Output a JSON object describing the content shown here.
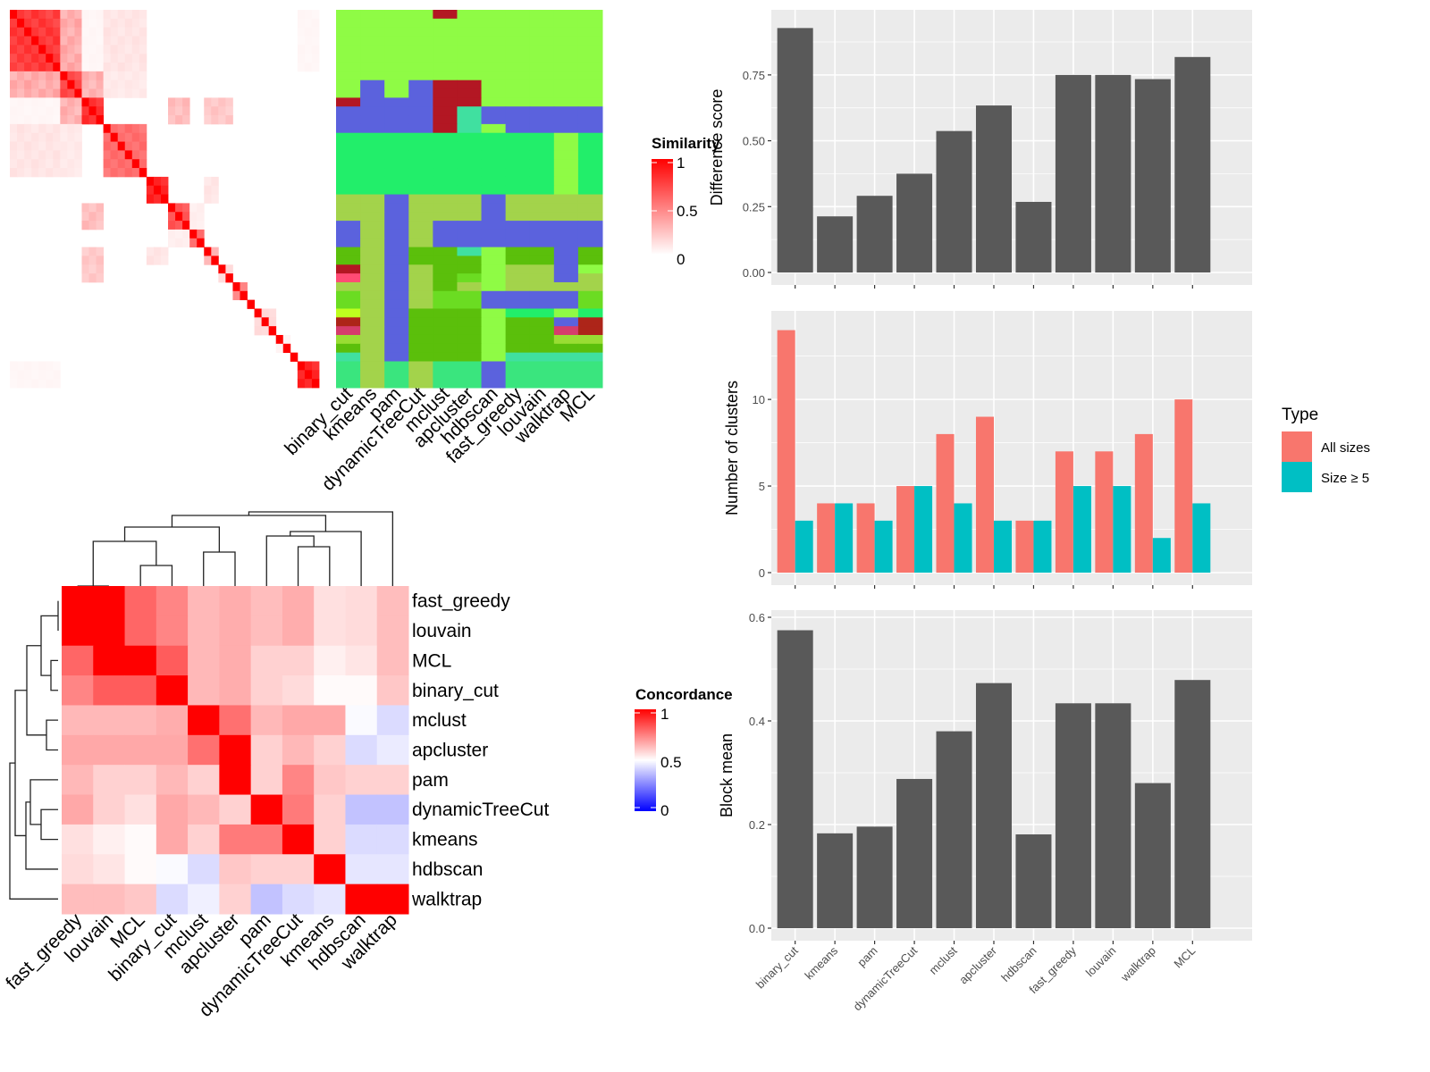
{
  "chart_data": [
    {
      "id": "similarity_heatmap",
      "type": "heatmap",
      "title": "",
      "n": 43,
      "legend": {
        "title": "Similarity",
        "ticks": [
          "1",
          "0.5",
          "0"
        ],
        "low_color": "#ffffff",
        "high_color": "#ff0000",
        "range": [
          0,
          1
        ]
      },
      "blocks": [
        {
          "from": 0,
          "to": 6,
          "within": 0.82
        },
        {
          "from": 7,
          "to": 9,
          "within": 0.75
        },
        {
          "from": 10,
          "to": 12,
          "within": 0.85
        },
        {
          "from": 13,
          "to": 18,
          "within": 0.6
        },
        {
          "from": 19,
          "to": 21,
          "within": 0.9
        },
        {
          "from": 22,
          "to": 24,
          "within": 0.7
        },
        {
          "from": 25,
          "to": 26,
          "within": 0.6
        },
        {
          "from": 27,
          "to": 28,
          "within": 0.3
        },
        {
          "from": 29,
          "to": 30,
          "within": 0.15
        },
        {
          "from": 31,
          "to": 32,
          "within": 0.5
        },
        {
          "from": 33,
          "to": 33,
          "within": 1.0
        },
        {
          "from": 34,
          "to": 36,
          "within": 0.15
        },
        {
          "from": 37,
          "to": 38,
          "within": 0.05
        },
        {
          "from": 39,
          "to": 39,
          "within": 1.0
        },
        {
          "from": 40,
          "to": 42,
          "within": 0.9
        }
      ],
      "cross": [
        {
          "a": [
            0,
            6
          ],
          "b": [
            7,
            9
          ],
          "v": 0.38
        },
        {
          "a": [
            0,
            6
          ],
          "b": [
            10,
            12
          ],
          "v": 0.04
        },
        {
          "a": [
            0,
            6
          ],
          "b": [
            13,
            18
          ],
          "v": 0.12
        },
        {
          "a": [
            7,
            9
          ],
          "b": [
            10,
            12
          ],
          "v": 0.35
        },
        {
          "a": [
            7,
            9
          ],
          "b": [
            13,
            18
          ],
          "v": 0.1
        },
        {
          "a": [
            10,
            12
          ],
          "b": [
            27,
            30
          ],
          "v": 0.25
        },
        {
          "a": [
            13,
            18
          ],
          "b": [
            19,
            21
          ],
          "v": 0.0
        },
        {
          "a": [
            22,
            24
          ],
          "b": [
            25,
            26
          ],
          "v": 0.08
        },
        {
          "a": [
            19,
            21
          ],
          "b": [
            27,
            28
          ],
          "v": 0.12
        },
        {
          "a": [
            10,
            12
          ],
          "b": [
            22,
            24
          ],
          "v": 0.3
        },
        {
          "a": [
            0,
            6
          ],
          "b": [
            40,
            42
          ],
          "v": 0.04
        }
      ]
    },
    {
      "id": "cluster_membership_heatmap",
      "type": "heatmap",
      "columns": [
        "binary_cut",
        "kmeans",
        "pam",
        "dynamicTreeCut",
        "mclust",
        "apcluster",
        "hdbscan",
        "fast_greedy",
        "louvain",
        "walktrap",
        "MCL"
      ],
      "palette": {
        "L": "#8ffb45",
        "R": "#b31723",
        "B": "#5b62dd",
        "T": "#40e0a0",
        "S": "#22ee6a",
        "O": "#a3d34b",
        "D": "#5bbf0b",
        "M": "#6bdc22",
        "P": "#ff4b74",
        "Y": "#beff1f",
        "K": "#ad2519",
        "C": "#d63c6c",
        "G": "#99dd33",
        "A": "#3ae57e"
      },
      "rows": [
        "LLLLRLLLLLL",
        "LLLLLLLLLLL",
        "LLLLLLLLLLL",
        "LLLLLLLLLLL",
        "LLLLLLLLLLL",
        "LLLLLLLLLLL",
        "LLLLLLLLLLL",
        "LLLLLLLLLLL",
        "LBLBRRLLLLL",
        "LBLBRRLLLLL",
        "RBBBRRLLLLL",
        "BBBBRTBBBBB",
        "BBBBRTBBBBB",
        "BBBBRTLBBBB",
        "SSSSSSSSSLS",
        "SSSSSSSSSLS",
        "SSSSSSSSSLS",
        "SSSSSSSSSLS",
        "SSSSSSSSSLS",
        "SSSSSSSSSLS",
        "SSSSSSSSSLS",
        "OOBOOOBOOOO",
        "OOBOOOBOOOO",
        "OOBOOOBOOOO",
        "BOBOBBBBBBB",
        "BOBOBBBBBBB",
        "BOBOBBBBBBB",
        "DOBDDTLDDBD",
        "DOBDDDLDDBD",
        "ROBODDLOOBL",
        "POBODMLOOBO",
        "OOBODOLOOOO",
        "MOBOMMBBBBM",
        "MOBOMMBBBBM",
        "YOBDDDLSSLS",
        "KOBDDDLDDBK",
        "COBDDDLDDCK",
        "GOBDDDLDDGG",
        "DOBDDDLDDDD",
        "TOBDDDLTTTT",
        "AOAOAABAAAA",
        "AOAOAABAAAA",
        "AOAOAABAAAA"
      ]
    },
    {
      "id": "concordance_heatmap",
      "type": "heatmap",
      "labels": [
        "fast_greedy",
        "louvain",
        "MCL",
        "binary_cut",
        "mclust",
        "apcluster",
        "pam",
        "dynamicTreeCut",
        "kmeans",
        "hdbscan",
        "walktrap"
      ],
      "legend": {
        "title": "Concordance",
        "ticks": [
          "1",
          "0.5",
          "0"
        ],
        "low_color": "#0000ff",
        "mid_color": "#ffffff",
        "high_color": "#ff0000",
        "range": [
          0,
          1
        ]
      },
      "matrix": [
        [
          1.0,
          1.0,
          0.8,
          0.74,
          0.64,
          0.66,
          0.63,
          0.66,
          0.56,
          0.57,
          0.63
        ],
        [
          1.0,
          1.0,
          0.8,
          0.74,
          0.64,
          0.66,
          0.63,
          0.66,
          0.56,
          0.57,
          0.63
        ],
        [
          0.8,
          1.0,
          1.0,
          0.82,
          0.64,
          0.66,
          0.59,
          0.59,
          0.53,
          0.55,
          0.63
        ],
        [
          0.74,
          0.82,
          0.82,
          1.0,
          0.64,
          0.66,
          0.59,
          0.57,
          0.51,
          0.51,
          0.61
        ],
        [
          0.64,
          0.64,
          0.64,
          0.66,
          1.0,
          0.78,
          0.64,
          0.67,
          0.67,
          0.49,
          0.43
        ],
        [
          0.67,
          0.67,
          0.67,
          0.67,
          0.78,
          1.0,
          0.59,
          0.64,
          0.59,
          0.43,
          0.46
        ],
        [
          0.64,
          0.59,
          0.59,
          0.64,
          0.59,
          1.0,
          0.59,
          0.74,
          0.61,
          0.59,
          0.59
        ],
        [
          0.67,
          0.59,
          0.56,
          0.67,
          0.64,
          0.59,
          1.0,
          0.76,
          0.59,
          0.38,
          0.38
        ],
        [
          0.56,
          0.53,
          0.51,
          0.67,
          0.59,
          0.76,
          0.76,
          1.0,
          0.59,
          0.43,
          0.43
        ],
        [
          0.57,
          0.55,
          0.51,
          0.49,
          0.43,
          0.61,
          0.59,
          0.59,
          1.0,
          0.45,
          0.45
        ],
        [
          0.63,
          0.63,
          0.61,
          0.43,
          0.47,
          0.59,
          0.38,
          0.43,
          0.45,
          1.0,
          1.0
        ]
      ],
      "dendrogram": "hierarchical clustering on rows and columns"
    },
    {
      "id": "difference_score",
      "type": "bar",
      "categories": [
        "binary_cut",
        "kmeans",
        "pam",
        "dynamicTreeCut",
        "mclust",
        "apcluster",
        "hdbscan",
        "fast_greedy",
        "louvain",
        "walktrap",
        "MCL"
      ],
      "values": [
        0.928,
        0.213,
        0.291,
        0.375,
        0.537,
        0.634,
        0.268,
        0.75,
        0.75,
        0.734,
        0.818
      ],
      "title": "",
      "xlabel": "",
      "ylabel": "Difference score",
      "ylim": [
        0,
        0.97
      ],
      "yticks": [
        "0.00",
        "0.25",
        "0.50",
        "0.75"
      ],
      "grid": true,
      "bar_color": "#595959",
      "background": "#ebebeb"
    },
    {
      "id": "number_of_clusters",
      "type": "bar",
      "categories": [
        "binary_cut",
        "kmeans",
        "pam",
        "dynamicTreeCut",
        "mclust",
        "apcluster",
        "hdbscan",
        "fast_greedy",
        "louvain",
        "walktrap",
        "MCL"
      ],
      "series": [
        {
          "name": "All sizes",
          "color": "#f8766d",
          "values": [
            14,
            4,
            4,
            5,
            8,
            9,
            3,
            7,
            7,
            8,
            10
          ]
        },
        {
          "name": "Size ≥ 5",
          "color": "#00bfc4",
          "values": [
            3,
            4,
            3,
            5,
            4,
            3,
            3,
            5,
            5,
            2,
            4
          ]
        }
      ],
      "title": "",
      "xlabel": "",
      "ylabel": "Number of clusters",
      "ylim": [
        0,
        14.7
      ],
      "yticks": [
        "0",
        "5",
        "10"
      ],
      "grid": true,
      "legend": {
        "title": "Type",
        "position": "right"
      },
      "background": "#ebebeb"
    },
    {
      "id": "block_mean",
      "type": "bar",
      "categories": [
        "binary_cut",
        "kmeans",
        "pam",
        "dynamicTreeCut",
        "mclust",
        "apcluster",
        "hdbscan",
        "fast_greedy",
        "louvain",
        "walktrap",
        "MCL"
      ],
      "values": [
        0.575,
        0.183,
        0.196,
        0.288,
        0.38,
        0.473,
        0.181,
        0.434,
        0.434,
        0.28,
        0.479
      ],
      "title": "",
      "xlabel": "",
      "ylabel": "Block mean",
      "ylim": [
        0,
        0.6
      ],
      "yticks": [
        "0.0",
        "0.2",
        "0.4",
        "0.6"
      ],
      "grid": true,
      "bar_color": "#595959",
      "background": "#ebebeb"
    }
  ]
}
